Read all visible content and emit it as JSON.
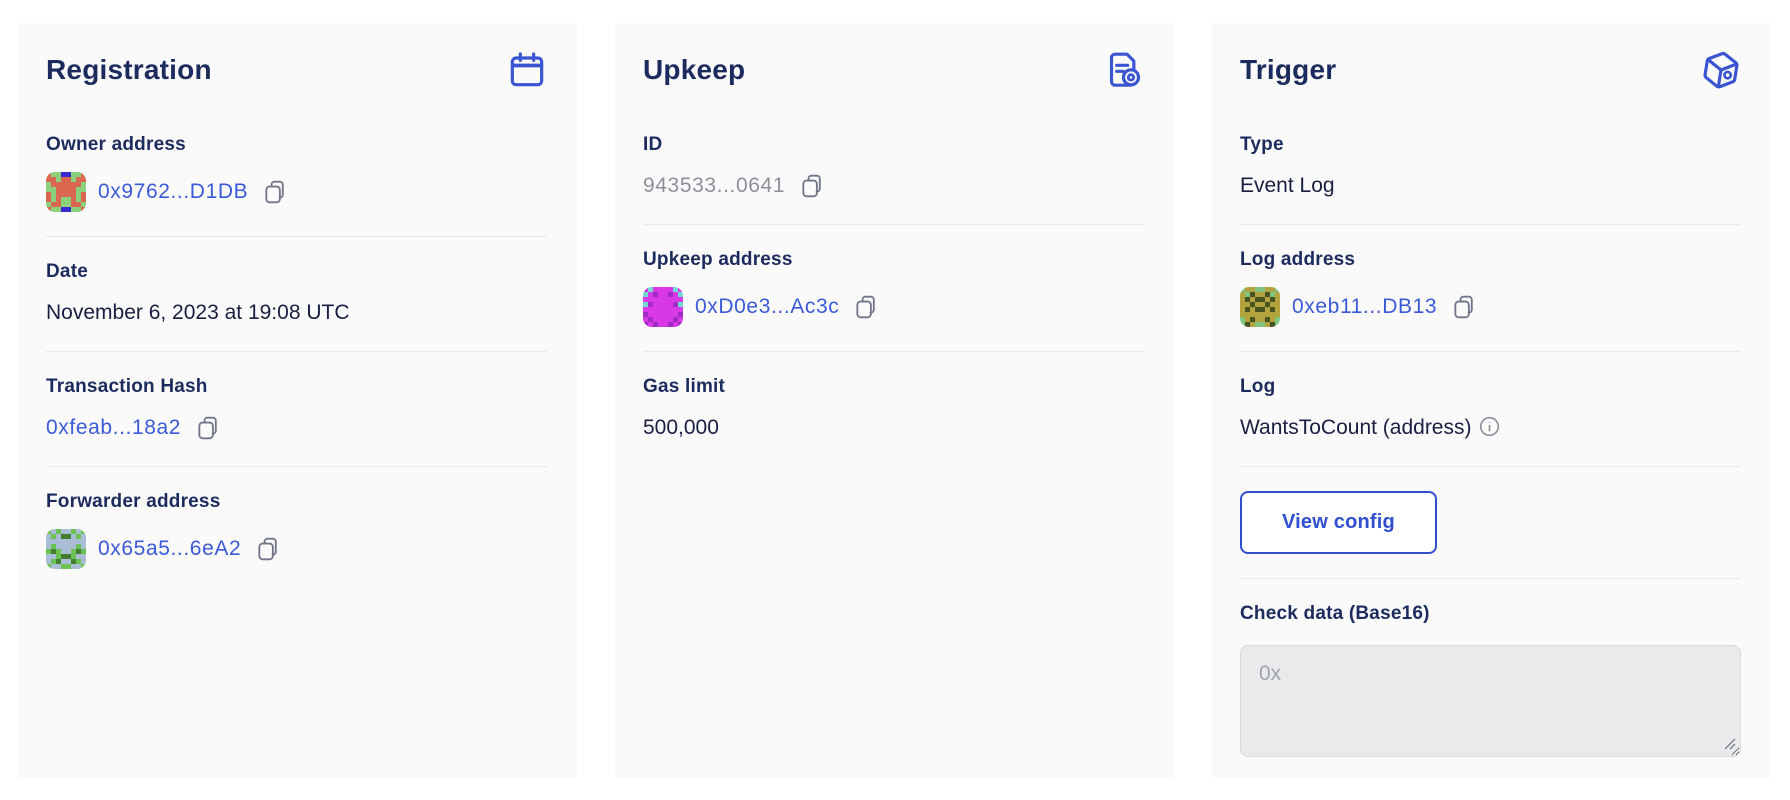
{
  "colors": {
    "page_bg": "#ffffff",
    "card_bg": "#fafafa",
    "heading_navy": "#1c2b5e",
    "body_text": "#181f40",
    "link_blue": "#3b5ad8",
    "muted_gray": "#8d909b",
    "icon_blue": "#3b55d2",
    "icon_gray": "#70758a",
    "divider": "#e8e8ea",
    "button_blue": "#2f4fd0",
    "textarea_bg": "#e9eaec"
  },
  "registration": {
    "title": "Registration",
    "owner": {
      "label": "Owner address",
      "value": "0x9762...D1DB"
    },
    "date": {
      "label": "Date",
      "value": "November 6, 2023 at 19:08 UTC"
    },
    "tx_hash": {
      "label": "Transaction Hash",
      "value": "0xfeab...18a2"
    },
    "forwarder": {
      "label": "Forwarder address",
      "value": "0x65a5...6eA2"
    }
  },
  "upkeep": {
    "title": "Upkeep",
    "id": {
      "label": "ID",
      "value": "943533...0641"
    },
    "address": {
      "label": "Upkeep address",
      "value": "0xD0e3...Ac3c"
    },
    "gas_limit": {
      "label": "Gas limit",
      "value": "500,000"
    }
  },
  "trigger": {
    "title": "Trigger",
    "type": {
      "label": "Type",
      "value": "Event Log"
    },
    "log_address": {
      "label": "Log address",
      "value": "0xeb11...DB13"
    },
    "log": {
      "label": "Log",
      "value": "WantsToCount (address)"
    },
    "view_config_label": "View config",
    "check_data": {
      "label": "Check data (Base16)",
      "placeholder": "0x"
    }
  },
  "avatars": {
    "owner": {
      "palette": {
        "c": "#d9684f",
        "g": "#8bd07b",
        "b": "#3a28cf"
      },
      "pattern": [
        "cggbbggc",
        "ccgccgcc",
        "gccccccg",
        "ggccccgg",
        "cgccccgc",
        "cgcggcgc",
        "gccggccg",
        "cggbbggc"
      ]
    },
    "upkeep_address": {
      "palette": {
        "m": "#d938e8",
        "t": "#6fd9d2",
        "p": "#a12cc4"
      },
      "pattern": [
        "mtmmmmtm",
        "tmpmmpmt",
        "mmmmmmmm",
        "tpmmmmpt",
        "mmmmmmmm",
        "pmmmmmmp",
        "mpmmmmpm",
        "pmpmmpmp"
      ]
    },
    "log_address": {
      "palette": {
        "o": "#b3a33f",
        "g": "#83c57f",
        "d": "#49531f"
      },
      "pattern": [
        "googgoog",
        "ogdoodgo",
        "ododdodo",
        "oodoodoo",
        "ododdodo",
        "oooooooo",
        "godoodog",
        "gdoggodg"
      ]
    },
    "forwarder": {
      "palette": {
        "s": "#a9bdd6",
        "g": "#6cc153",
        "d": "#447d2e"
      },
      "pattern": [
        "gsgssgsg",
        "sgsddsgs",
        "ssssssss",
        "sgssssgs",
        "gdgssgdg",
        "ssgddgss",
        "sgdssdgs",
        "gssggssg"
      ]
    }
  }
}
